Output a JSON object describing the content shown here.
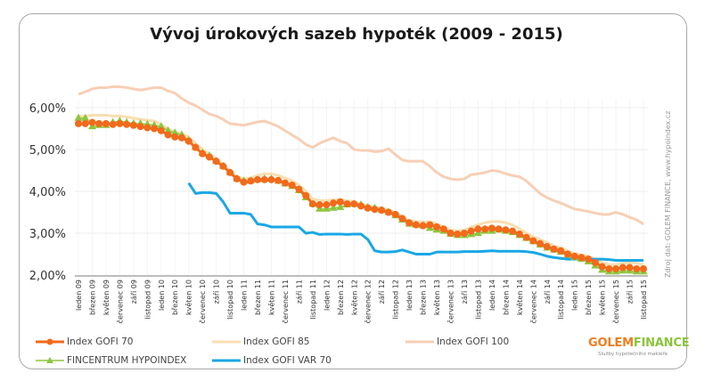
{
  "chart_data": {
    "type": "line",
    "title": "Vývoj úrokových sazeb hypoték (2009 - 2015)",
    "xlabel": "",
    "ylabel": "",
    "ylim": [
      2.0,
      6.0
    ],
    "yticks": [
      "2,00%",
      "3,00%",
      "4,00%",
      "5,00%",
      "6,00%"
    ],
    "ytick_values": [
      2.0,
      3.0,
      4.0,
      5.0,
      6.0
    ],
    "grid": true,
    "source_note": "Zdroj dat: GOLEM FINANCE, www.hypoindex.cz",
    "x_tick_labels": [
      "leden 09",
      "březen 09",
      "květen 09",
      "červenec 09",
      "září 09",
      "listopad 09",
      "leden 10",
      "březen 10",
      "květen 10",
      "červenec 10",
      "září 10",
      "listopad 10",
      "leden 11",
      "březen 11",
      "květen 11",
      "červenec 11",
      "září 11",
      "listopad 11",
      "leden 12",
      "březen 12",
      "květen 12",
      "červenec 12",
      "září 12",
      "listopad 12",
      "leden 13",
      "březen 13",
      "květen 13",
      "červenec 13",
      "září 13",
      "listopad 13",
      "leden 14",
      "březen 14",
      "květen 14",
      "červenec 14",
      "září 14",
      "listopad 14",
      "leden 15",
      "březen 15",
      "květen 15",
      "červenec 15",
      "září 15",
      "listopad 15"
    ],
    "x_count_months": 83,
    "legend_position": "bottom",
    "series": [
      {
        "name": "Index GOFI 70",
        "color": "#f26a1b",
        "marker": "circle",
        "values": [
          5.62,
          5.62,
          5.65,
          5.62,
          5.62,
          5.6,
          5.62,
          5.6,
          5.58,
          5.55,
          5.52,
          5.5,
          5.45,
          5.35,
          5.3,
          5.28,
          5.2,
          5.05,
          4.9,
          4.82,
          4.72,
          4.6,
          4.45,
          4.3,
          4.22,
          4.25,
          4.28,
          4.28,
          4.28,
          4.26,
          4.2,
          4.15,
          4.05,
          3.9,
          3.7,
          3.68,
          3.68,
          3.72,
          3.75,
          3.7,
          3.7,
          3.65,
          3.6,
          3.57,
          3.55,
          3.5,
          3.45,
          3.35,
          3.25,
          3.2,
          3.18,
          3.2,
          3.15,
          3.1,
          3.0,
          2.98,
          3.0,
          3.05,
          3.1,
          3.1,
          3.12,
          3.1,
          3.08,
          3.05,
          2.98,
          2.9,
          2.82,
          2.75,
          2.68,
          2.62,
          2.58,
          2.5,
          2.45,
          2.42,
          2.38,
          2.3,
          2.2,
          2.15,
          2.15,
          2.18,
          2.18,
          2.15,
          2.15
        ]
      },
      {
        "name": "Index GOFI 85",
        "color": "#f9deb0",
        "marker": "none",
        "values": [
          5.8,
          5.8,
          5.82,
          5.82,
          5.82,
          5.8,
          5.8,
          5.78,
          5.75,
          5.72,
          5.7,
          5.68,
          5.6,
          5.5,
          5.42,
          5.38,
          5.3,
          5.15,
          5.0,
          4.9,
          4.78,
          4.65,
          4.5,
          4.35,
          4.3,
          4.32,
          4.38,
          4.42,
          4.42,
          4.38,
          4.32,
          4.25,
          4.15,
          4.0,
          3.82,
          3.78,
          3.78,
          3.8,
          3.8,
          3.78,
          3.75,
          3.7,
          3.66,
          3.62,
          3.6,
          3.56,
          3.5,
          3.4,
          3.3,
          3.28,
          3.27,
          3.28,
          3.22,
          3.15,
          3.08,
          3.05,
          3.08,
          3.15,
          3.2,
          3.25,
          3.28,
          3.28,
          3.25,
          3.2,
          3.1,
          3.0,
          2.92,
          2.85,
          2.78,
          2.7,
          2.65,
          2.58,
          2.52,
          2.48,
          2.45,
          2.38,
          2.3,
          2.25,
          2.25,
          2.28,
          2.3,
          2.28,
          2.25
        ]
      },
      {
        "name": "Index GOFI 100",
        "color": "#f7cfb5",
        "marker": "none",
        "values": [
          6.32,
          6.38,
          6.45,
          6.48,
          6.48,
          6.5,
          6.5,
          6.48,
          6.45,
          6.42,
          6.45,
          6.48,
          6.48,
          6.4,
          6.35,
          6.22,
          6.12,
          6.05,
          5.95,
          5.85,
          5.8,
          5.72,
          5.62,
          5.6,
          5.58,
          5.62,
          5.66,
          5.68,
          5.62,
          5.55,
          5.45,
          5.35,
          5.25,
          5.12,
          5.05,
          5.15,
          5.22,
          5.28,
          5.2,
          5.15,
          5.0,
          4.98,
          4.98,
          4.95,
          4.96,
          5.02,
          4.88,
          4.75,
          4.72,
          4.72,
          4.72,
          4.6,
          4.45,
          4.35,
          4.3,
          4.28,
          4.3,
          4.4,
          4.42,
          4.45,
          4.5,
          4.48,
          4.42,
          4.38,
          4.35,
          4.25,
          4.1,
          3.95,
          3.85,
          3.78,
          3.72,
          3.65,
          3.58,
          3.55,
          3.52,
          3.48,
          3.45,
          3.45,
          3.5,
          3.45,
          3.38,
          3.32,
          3.22
        ]
      },
      {
        "name": "FINCENTRUM HYPOINDEX",
        "color": "#8dc63f",
        "marker": "triangle",
        "values": [
          5.75,
          5.75,
          5.55,
          5.58,
          5.58,
          5.65,
          5.68,
          5.65,
          5.62,
          5.62,
          5.6,
          5.58,
          5.55,
          5.45,
          5.4,
          5.35,
          5.22,
          5.05,
          4.92,
          4.85,
          4.72,
          4.6,
          4.45,
          4.3,
          4.25,
          4.25,
          4.28,
          4.3,
          4.3,
          4.25,
          4.18,
          4.12,
          4.02,
          3.85,
          3.7,
          3.58,
          3.58,
          3.6,
          3.62,
          3.68,
          3.7,
          3.68,
          3.62,
          3.6,
          3.55,
          3.5,
          3.42,
          3.32,
          3.22,
          3.2,
          3.18,
          3.12,
          3.08,
          3.05,
          2.98,
          2.95,
          2.95,
          2.97,
          3.0,
          3.05,
          3.05,
          3.08,
          3.05,
          3.02,
          2.95,
          2.88,
          2.8,
          2.72,
          2.65,
          2.6,
          2.55,
          2.48,
          2.42,
          2.38,
          2.32,
          2.22,
          2.12,
          2.08,
          2.08,
          2.1,
          2.1,
          2.08,
          2.08
        ]
      },
      {
        "name": "Index GOFI VAR 70",
        "color": "#1aa7e6",
        "marker": "none",
        "start_index": 16,
        "values": [
          4.2,
          3.95,
          3.97,
          3.97,
          3.95,
          3.75,
          3.48,
          3.48,
          3.48,
          3.45,
          3.22,
          3.2,
          3.15,
          3.15,
          3.15,
          3.15,
          3.15,
          3.0,
          3.02,
          2.97,
          2.98,
          2.98,
          2.98,
          2.97,
          2.98,
          2.98,
          2.85,
          2.58,
          2.55,
          2.55,
          2.56,
          2.6,
          2.55,
          2.5,
          2.5,
          2.5,
          2.55,
          2.55,
          2.55,
          2.55,
          2.56,
          2.56,
          2.56,
          2.57,
          2.58,
          2.57,
          2.57,
          2.57,
          2.57,
          2.56,
          2.54,
          2.5,
          2.45,
          2.42,
          2.4,
          2.38,
          2.38,
          2.38,
          2.38,
          2.38,
          2.38,
          2.37,
          2.35,
          2.35,
          2.35,
          2.35,
          2.35
        ]
      }
    ]
  },
  "legend": {
    "items": [
      {
        "label": "Index GOFI 70"
      },
      {
        "label": "Index GOFI 85"
      },
      {
        "label": "Index GOFI 100"
      },
      {
        "label": "FINCENTRUM HYPOINDEX"
      },
      {
        "label": "Index GOFI VAR 70"
      }
    ]
  },
  "logo": {
    "brand_part1": "GOLEM",
    "brand_part2": "FINANCE",
    "tagline": "Služby hypotečního makléře"
  }
}
